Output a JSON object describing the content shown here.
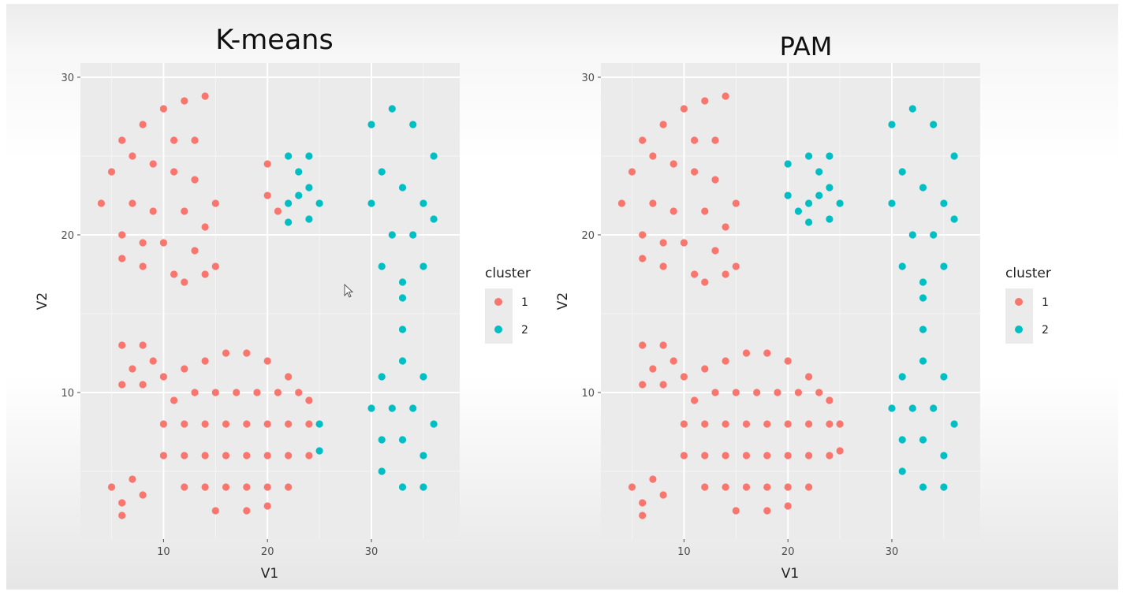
{
  "chart_data": [
    {
      "type": "scatter",
      "title": "K-means",
      "xlabel": "V1",
      "ylabel": "V2",
      "xlim": [
        2,
        38.5
      ],
      "ylim": [
        0.7,
        30.9
      ],
      "xticks": [
        "10",
        "20",
        "30"
      ],
      "yticks": [
        "10",
        "20",
        "30"
      ],
      "grid": true,
      "legend": {
        "title": "cluster",
        "position": "right",
        "labels": [
          "1",
          "2"
        ]
      },
      "series": [
        {
          "name": "1",
          "color": "#F8766D",
          "points": [
            [
              5,
              24
            ],
            [
              6,
              26
            ],
            [
              8,
              27
            ],
            [
              10,
              28
            ],
            [
              12,
              28.5
            ],
            [
              14,
              28.8
            ],
            [
              11,
              26
            ],
            [
              13,
              26
            ],
            [
              9,
              24.5
            ],
            [
              11,
              24
            ],
            [
              13,
              23.5
            ],
            [
              7,
              22
            ],
            [
              9,
              21.5
            ],
            [
              12,
              21.5
            ],
            [
              14,
              20.5
            ],
            [
              6,
              20
            ],
            [
              8,
              19.5
            ],
            [
              10,
              19.5
            ],
            [
              13,
              19
            ],
            [
              8,
              18
            ],
            [
              11,
              17.5
            ],
            [
              12,
              17
            ],
            [
              14,
              17.5
            ],
            [
              6,
              18.5
            ],
            [
              4,
              22
            ],
            [
              7,
              25
            ],
            [
              15,
              18
            ],
            [
              15,
              22
            ],
            [
              20,
              24.5
            ],
            [
              20,
              22.5
            ],
            [
              21,
              21.5
            ],
            [
              6,
              13
            ],
            [
              8,
              13
            ],
            [
              7,
              11.5
            ],
            [
              9,
              12
            ],
            [
              6,
              10.5
            ],
            [
              8,
              10.5
            ],
            [
              10,
              11
            ],
            [
              12,
              11.5
            ],
            [
              14,
              12
            ],
            [
              16,
              12.5
            ],
            [
              18,
              12.5
            ],
            [
              20,
              12
            ],
            [
              22,
              11
            ],
            [
              24,
              9.5
            ],
            [
              11,
              9.5
            ],
            [
              13,
              10
            ],
            [
              15,
              10
            ],
            [
              17,
              10
            ],
            [
              19,
              10
            ],
            [
              21,
              10
            ],
            [
              23,
              10
            ],
            [
              10,
              8
            ],
            [
              12,
              8
            ],
            [
              14,
              8
            ],
            [
              16,
              8
            ],
            [
              18,
              8
            ],
            [
              20,
              8
            ],
            [
              22,
              8
            ],
            [
              24,
              8
            ],
            [
              10,
              6
            ],
            [
              12,
              6
            ],
            [
              14,
              6
            ],
            [
              16,
              6
            ],
            [
              18,
              6
            ],
            [
              20,
              6
            ],
            [
              22,
              6
            ],
            [
              24,
              6
            ],
            [
              12,
              4
            ],
            [
              14,
              4
            ],
            [
              16,
              4
            ],
            [
              18,
              4
            ],
            [
              20,
              4
            ],
            [
              22,
              4
            ],
            [
              15,
              2.5
            ],
            [
              18,
              2.5
            ],
            [
              20,
              2.8
            ],
            [
              5,
              4
            ],
            [
              6,
              3
            ],
            [
              7,
              4.5
            ],
            [
              8,
              3.5
            ],
            [
              6,
              2.2
            ]
          ]
        },
        {
          "name": "2",
          "color": "#00BFC4",
          "points": [
            [
              22,
              25
            ],
            [
              23,
              24
            ],
            [
              24,
              25
            ],
            [
              24,
              23
            ],
            [
              22,
              22
            ],
            [
              23,
              22.5
            ],
            [
              25,
              22
            ],
            [
              24,
              21
            ],
            [
              22,
              20.8
            ],
            [
              30,
              27
            ],
            [
              32,
              28
            ],
            [
              34,
              27
            ],
            [
              36,
              25
            ],
            [
              31,
              24
            ],
            [
              33,
              23
            ],
            [
              35,
              22
            ],
            [
              30,
              22
            ],
            [
              32,
              20
            ],
            [
              34,
              20
            ],
            [
              36,
              21
            ],
            [
              31,
              18
            ],
            [
              33,
              17
            ],
            [
              35,
              18
            ],
            [
              33,
              16
            ],
            [
              33,
              14
            ],
            [
              33,
              12
            ],
            [
              31,
              11
            ],
            [
              35,
              11
            ],
            [
              30,
              9
            ],
            [
              32,
              9
            ],
            [
              34,
              9
            ],
            [
              36,
              8
            ],
            [
              31,
              7
            ],
            [
              33,
              7
            ],
            [
              35,
              6
            ],
            [
              31,
              5
            ],
            [
              33,
              4
            ],
            [
              35,
              4
            ],
            [
              25,
              8
            ],
            [
              25,
              6.3
            ]
          ]
        }
      ]
    },
    {
      "type": "scatter",
      "title": "PAM",
      "xlabel": "V1",
      "ylabel": "V2",
      "xlim": [
        2,
        38.5
      ],
      "ylim": [
        0.7,
        30.9
      ],
      "xticks": [
        "10",
        "20",
        "30"
      ],
      "yticks": [
        "10",
        "20",
        "30"
      ],
      "grid": true,
      "legend": {
        "title": "cluster",
        "position": "right",
        "labels": [
          "1",
          "2"
        ]
      },
      "series": [
        {
          "name": "1",
          "color": "#F8766D",
          "points": [
            [
              5,
              24
            ],
            [
              6,
              26
            ],
            [
              8,
              27
            ],
            [
              10,
              28
            ],
            [
              12,
              28.5
            ],
            [
              14,
              28.8
            ],
            [
              11,
              26
            ],
            [
              13,
              26
            ],
            [
              9,
              24.5
            ],
            [
              11,
              24
            ],
            [
              13,
              23.5
            ],
            [
              7,
              22
            ],
            [
              9,
              21.5
            ],
            [
              12,
              21.5
            ],
            [
              14,
              20.5
            ],
            [
              6,
              20
            ],
            [
              8,
              19.5
            ],
            [
              10,
              19.5
            ],
            [
              13,
              19
            ],
            [
              8,
              18
            ],
            [
              11,
              17.5
            ],
            [
              12,
              17
            ],
            [
              14,
              17.5
            ],
            [
              6,
              18.5
            ],
            [
              4,
              22
            ],
            [
              7,
              25
            ],
            [
              15,
              18
            ],
            [
              15,
              22
            ],
            [
              6,
              13
            ],
            [
              8,
              13
            ],
            [
              7,
              11.5
            ],
            [
              9,
              12
            ],
            [
              6,
              10.5
            ],
            [
              8,
              10.5
            ],
            [
              10,
              11
            ],
            [
              12,
              11.5
            ],
            [
              14,
              12
            ],
            [
              16,
              12.5
            ],
            [
              18,
              12.5
            ],
            [
              20,
              12
            ],
            [
              22,
              11
            ],
            [
              24,
              9.5
            ],
            [
              11,
              9.5
            ],
            [
              13,
              10
            ],
            [
              15,
              10
            ],
            [
              17,
              10
            ],
            [
              19,
              10
            ],
            [
              21,
              10
            ],
            [
              23,
              10
            ],
            [
              10,
              8
            ],
            [
              12,
              8
            ],
            [
              14,
              8
            ],
            [
              16,
              8
            ],
            [
              18,
              8
            ],
            [
              20,
              8
            ],
            [
              22,
              8
            ],
            [
              24,
              8
            ],
            [
              10,
              6
            ],
            [
              12,
              6
            ],
            [
              14,
              6
            ],
            [
              16,
              6
            ],
            [
              18,
              6
            ],
            [
              20,
              6
            ],
            [
              22,
              6
            ],
            [
              24,
              6
            ],
            [
              12,
              4
            ],
            [
              14,
              4
            ],
            [
              16,
              4
            ],
            [
              18,
              4
            ],
            [
              20,
              4
            ],
            [
              22,
              4
            ],
            [
              15,
              2.5
            ],
            [
              18,
              2.5
            ],
            [
              20,
              2.8
            ],
            [
              25,
              8
            ],
            [
              25,
              6.3
            ],
            [
              5,
              4
            ],
            [
              6,
              3
            ],
            [
              7,
              4.5
            ],
            [
              8,
              3.5
            ],
            [
              6,
              2.2
            ]
          ]
        },
        {
          "name": "2",
          "color": "#00BFC4",
          "points": [
            [
              20,
              24.5
            ],
            [
              20,
              22.5
            ],
            [
              21,
              21.5
            ],
            [
              22,
              25
            ],
            [
              23,
              24
            ],
            [
              24,
              25
            ],
            [
              24,
              23
            ],
            [
              22,
              22
            ],
            [
              23,
              22.5
            ],
            [
              25,
              22
            ],
            [
              24,
              21
            ],
            [
              22,
              20.8
            ],
            [
              30,
              27
            ],
            [
              32,
              28
            ],
            [
              34,
              27
            ],
            [
              36,
              25
            ],
            [
              31,
              24
            ],
            [
              33,
              23
            ],
            [
              35,
              22
            ],
            [
              30,
              22
            ],
            [
              32,
              20
            ],
            [
              34,
              20
            ],
            [
              36,
              21
            ],
            [
              31,
              18
            ],
            [
              33,
              17
            ],
            [
              35,
              18
            ],
            [
              33,
              16
            ],
            [
              33,
              14
            ],
            [
              33,
              12
            ],
            [
              31,
              11
            ],
            [
              35,
              11
            ],
            [
              30,
              9
            ],
            [
              32,
              9
            ],
            [
              34,
              9
            ],
            [
              36,
              8
            ],
            [
              31,
              7
            ],
            [
              33,
              7
            ],
            [
              35,
              6
            ],
            [
              31,
              5
            ],
            [
              33,
              4
            ],
            [
              35,
              4
            ]
          ]
        }
      ]
    }
  ]
}
